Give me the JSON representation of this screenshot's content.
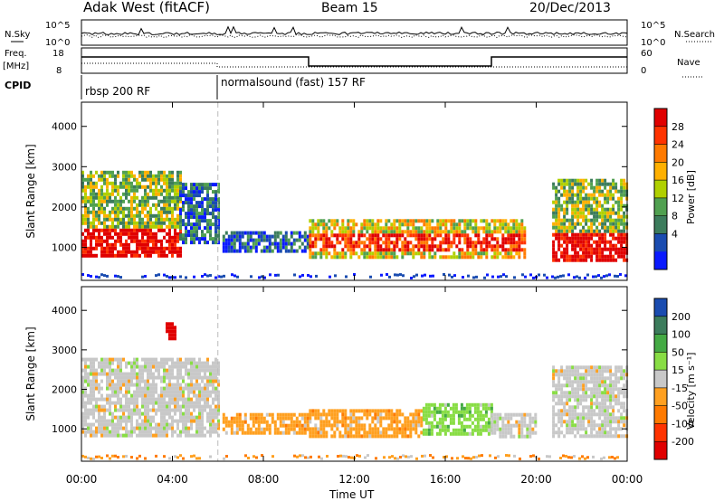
{
  "header": {
    "title": "Adak West (fitACF)",
    "beam": "Beam 15",
    "date": "20/Dec/2013"
  },
  "panels": {
    "nsky": {
      "label": "N.Sky",
      "right_label": "N.Search",
      "left_ticks": [
        "10^5",
        "10^0"
      ],
      "right_ticks": [
        "10^5",
        "10^0"
      ]
    },
    "freq": {
      "label_line1": "Freq.",
      "label_line2": "[MHz]",
      "right_label": "Nave",
      "left_ticks": [
        "18",
        "8"
      ],
      "right_ticks": [
        "60",
        "0"
      ]
    },
    "cpid": {
      "label": "CPID",
      "modes": [
        {
          "text": "rbsp 200 RF",
          "start_hour": 0
        },
        {
          "text": "normalsound (fast) 157 RF",
          "start_hour": 6
        }
      ]
    }
  },
  "power_colorbar": {
    "label": "Power [dB]",
    "ticks": [
      "28",
      "24",
      "20",
      "16",
      "12",
      "8",
      "4"
    ],
    "colors": [
      "#e00000",
      "#ff3300",
      "#ff7a00",
      "#ffb000",
      "#b0d000",
      "#50a050",
      "#3c7c5c",
      "#1a4cb0",
      "#0a1aff"
    ]
  },
  "velocity_colorbar": {
    "label": "Velocity [m s⁻¹]",
    "ticks": [
      "200",
      "100",
      "50",
      "15",
      "-15",
      "-50",
      "-100",
      "-200"
    ],
    "colors": [
      "#1a4cb0",
      "#3c7c5c",
      "#44aa44",
      "#88dd44",
      "#c8c8c8",
      "#ffa020",
      "#ff7a00",
      "#ff3300",
      "#e00000"
    ]
  },
  "chart_data": [
    {
      "type": "heatmap",
      "title": "Power",
      "xlabel": "Time UT",
      "ylabel": "Slant Range [km]",
      "x_ticks": [
        "00:00",
        "04:00",
        "08:00",
        "12:00",
        "16:00",
        "20:00",
        "00:00"
      ],
      "y_ticks": [
        1000,
        2000,
        3000,
        4000
      ],
      "xlim": [
        0,
        24
      ],
      "ylim": [
        180,
        4600
      ],
      "echo_regions": [
        {
          "t0": 0.0,
          "t1": 4.3,
          "r0": 750,
          "r1": 2900,
          "level": "high"
        },
        {
          "t0": 4.3,
          "t1": 6.0,
          "r0": 1100,
          "r1": 2600,
          "level": "low"
        },
        {
          "t0": 6.2,
          "t1": 10.0,
          "r0": 900,
          "r1": 1400,
          "level": "low"
        },
        {
          "t0": 10.0,
          "t1": 19.5,
          "r0": 800,
          "r1": 1700,
          "level": "medium"
        },
        {
          "t0": 20.7,
          "t1": 24.0,
          "r0": 700,
          "r1": 2700,
          "level": "high"
        }
      ]
    },
    {
      "type": "heatmap",
      "title": "Velocity",
      "xlabel": "Time UT",
      "ylabel": "Slant Range [km]",
      "x_ticks": [
        "00:00",
        "04:00",
        "08:00",
        "12:00",
        "16:00",
        "20:00",
        "00:00"
      ],
      "y_ticks": [
        1000,
        2000,
        3000,
        4000
      ],
      "xlim": [
        0,
        24
      ],
      "ylim": [
        180,
        4600
      ],
      "echo_regions": [
        {
          "t0": 0.0,
          "t1": 6.0,
          "r0": 800,
          "r1": 2800,
          "velocity": "ground"
        },
        {
          "t0": 3.7,
          "t1": 4.1,
          "r0": 3300,
          "r1": 3700,
          "velocity": "-200"
        },
        {
          "t0": 6.2,
          "t1": 10.0,
          "r0": 900,
          "r1": 1400,
          "velocity": "-50"
        },
        {
          "t0": 10.0,
          "t1": 15.0,
          "r0": 800,
          "r1": 1500,
          "velocity": "-50"
        },
        {
          "t0": 15.0,
          "t1": 18.0,
          "r0": 850,
          "r1": 1650,
          "velocity": "15"
        },
        {
          "t0": 18.0,
          "t1": 20.0,
          "r0": 800,
          "r1": 1400,
          "velocity": "ground"
        },
        {
          "t0": 20.7,
          "t1": 24.0,
          "r0": 800,
          "r1": 2600,
          "velocity": "ground"
        }
      ]
    }
  ]
}
